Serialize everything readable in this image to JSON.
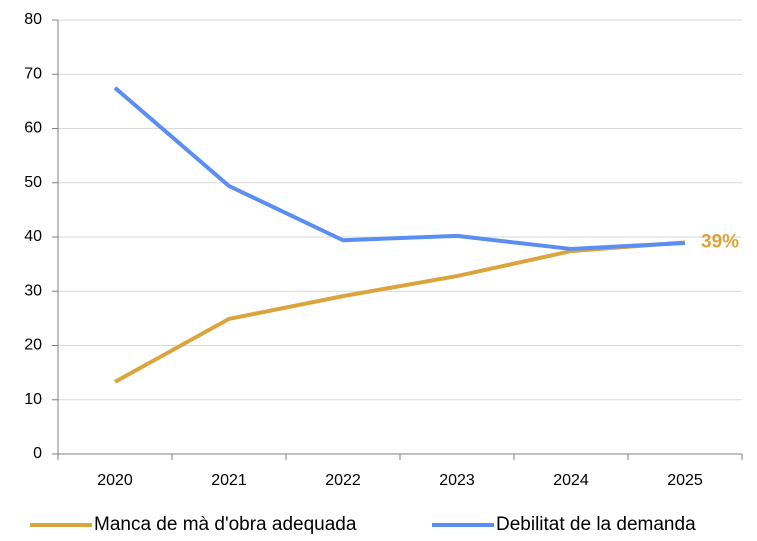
{
  "chart_data": {
    "type": "line",
    "categories": [
      "2020",
      "2021",
      "2022",
      "2023",
      "2024",
      "2025"
    ],
    "series": [
      {
        "name": "Manca de mà d'obra adequada",
        "color": "#dba53e",
        "values": [
          13.3,
          24.9,
          29.1,
          32.8,
          37.4,
          39
        ],
        "value_labels": [
          null,
          null,
          null,
          null,
          null,
          "39%"
        ]
      },
      {
        "name": "Debilitat de la demanda",
        "color": "#5a8ef2",
        "values": [
          67.5,
          49.4,
          39.4,
          40.2,
          37.8,
          38.9
        ]
      }
    ],
    "ylim": [
      0,
      80
    ],
    "yticks": [
      0,
      10,
      20,
      30,
      40,
      50,
      60,
      70,
      80
    ],
    "grid": true,
    "legend": "bottom"
  }
}
